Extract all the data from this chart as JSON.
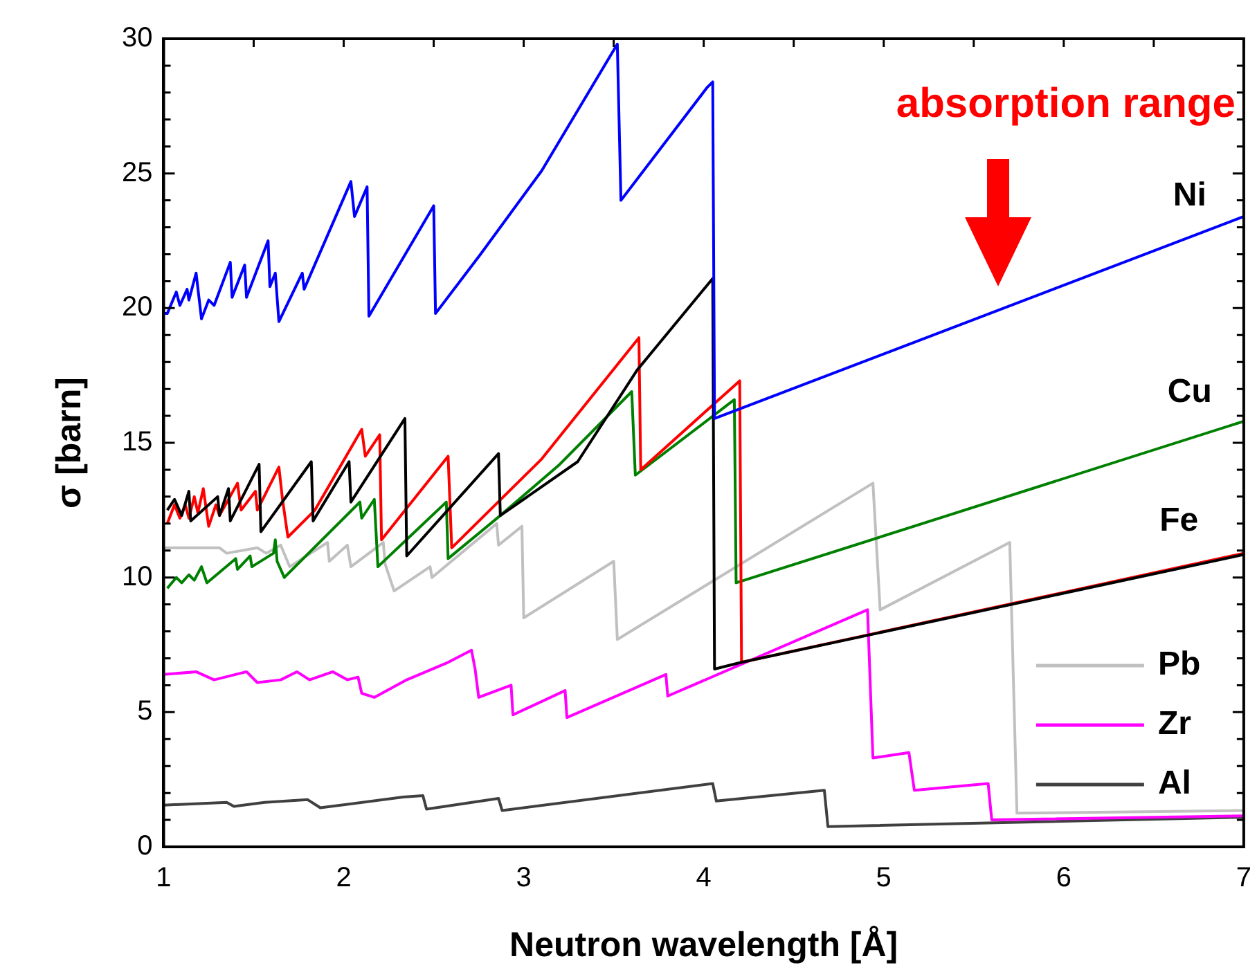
{
  "chart_data": {
    "type": "line",
    "xlabel": "Neutron wavelength [Å]",
    "ylabel": "σ [barn]",
    "xlim": [
      1,
      7
    ],
    "xticks": [
      1,
      2,
      3,
      4,
      5,
      6,
      7
    ],
    "ylim": [
      0,
      30
    ],
    "yticks": [
      0,
      5,
      10,
      15,
      20,
      25,
      30
    ],
    "grid": false,
    "legend": "bottom right",
    "marker": "none",
    "line_style": "solid",
    "annotations": [
      "absorption range",
      "Ni",
      "Cu",
      "Fe"
    ],
    "series": [
      {
        "color": "#0000ff",
        "x": [
          1,
          1.02,
          1.07,
          1.09,
          1.13,
          1.14,
          1.18,
          1.21,
          1.25,
          1.28,
          1.37,
          1.38,
          1.45,
          1.46,
          1.58,
          1.59,
          1.62,
          1.64,
          1.77,
          1.78,
          2.04,
          2.06,
          2.13,
          2.14,
          2.5,
          2.51,
          2.76,
          3.1,
          3.52,
          3.54,
          4.02,
          4.05,
          4.06,
          7
        ],
        "values": [
          19.8,
          19.8,
          20.6,
          20.1,
          20.7,
          20.3,
          21.3,
          19.6,
          20.3,
          20.1,
          21.7,
          20.4,
          21.6,
          20.4,
          22.5,
          20.8,
          21.3,
          19.5,
          21.3,
          20.7,
          24.7,
          23.4,
          24.5,
          19.7,
          23.8,
          19.8,
          22,
          25.1,
          29.8,
          24,
          28.2,
          28.4,
          15.9,
          23.4
        ]
      },
      {
        "color": "#000000",
        "x": [
          1.02,
          1.06,
          1.1,
          1.14,
          1.15,
          1.3,
          1.31,
          1.36,
          1.37,
          1.53,
          1.54,
          1.82,
          1.83,
          2.03,
          2.04,
          2.34,
          2.35,
          2.86,
          2.87,
          3.3,
          3.63,
          4.05,
          4.06,
          4.21,
          7
        ],
        "values": [
          12.5,
          12.9,
          12.3,
          13.2,
          12.1,
          13,
          12.3,
          13.3,
          12.1,
          14.2,
          11.7,
          14.3,
          12.1,
          14.3,
          12.8,
          15.9,
          10.8,
          14.6,
          12.3,
          14.3,
          17.7,
          21.1,
          6.6,
          6.85,
          10.85
        ]
      },
      {
        "color": "#ff0000",
        "x": [
          1.02,
          1.06,
          1.09,
          1.12,
          1.14,
          1.17,
          1.19,
          1.22,
          1.25,
          1.29,
          1.31,
          1.41,
          1.43,
          1.51,
          1.52,
          1.64,
          1.66,
          1.69,
          1.84,
          2.1,
          2.12,
          2.2,
          2.21,
          2.58,
          2.6,
          3.1,
          3.64,
          3.65,
          4.2,
          4.21,
          7
        ],
        "values": [
          12,
          12.7,
          12.2,
          12.7,
          12.2,
          13,
          12.4,
          13.3,
          11.9,
          12.7,
          12.3,
          13.5,
          12.5,
          13.2,
          12.5,
          14.1,
          12.9,
          11.5,
          12.5,
          15.5,
          14.5,
          15.3,
          11.4,
          14.5,
          11.1,
          14.4,
          18.9,
          14,
          17.3,
          6.85,
          10.9
        ]
      },
      {
        "color": "#008000",
        "x": [
          1.02,
          1.07,
          1.1,
          1.14,
          1.17,
          1.21,
          1.24,
          1.4,
          1.41,
          1.48,
          1.49,
          1.61,
          1.62,
          1.63,
          1.67,
          2.09,
          2.1,
          2.17,
          2.19,
          2.57,
          2.58,
          2.87,
          3.2,
          3.6,
          3.62,
          4.17,
          4.18,
          7
        ],
        "values": [
          9.6,
          10,
          9.8,
          10.1,
          9.9,
          10.4,
          9.8,
          10.7,
          10.3,
          10.8,
          10.4,
          10.9,
          11.4,
          10.6,
          10,
          12.8,
          12.2,
          12.9,
          10.4,
          12.8,
          10.7,
          12.3,
          14.2,
          16.9,
          13.8,
          16.6,
          9.8,
          15.8
        ]
      },
      {
        "name": "Pb",
        "color": "#c0c0c0",
        "x": [
          1,
          1.31,
          1.35,
          1.52,
          1.57,
          1.65,
          1.7,
          1.91,
          1.92,
          2.02,
          2.04,
          2.22,
          2.23,
          2.28,
          2.48,
          2.49,
          2.85,
          2.86,
          2.99,
          3,
          3.5,
          3.52,
          4.94,
          4.98,
          5.7,
          5.74,
          7
        ],
        "values": [
          11.1,
          11.1,
          10.9,
          11.1,
          10.9,
          11.2,
          10.4,
          11.3,
          10.6,
          11.2,
          10.4,
          11.3,
          10.5,
          9.5,
          10.4,
          10,
          12,
          11.2,
          11.9,
          8.5,
          10.6,
          7.7,
          13.5,
          8.8,
          11.3,
          1.25,
          1.35
        ]
      },
      {
        "name": "Zr",
        "color": "#ff00ff",
        "x": [
          1,
          1.18,
          1.28,
          1.46,
          1.52,
          1.65,
          1.74,
          1.81,
          1.94,
          2.02,
          2.08,
          2.1,
          2.17,
          2.35,
          2.58,
          2.71,
          2.73,
          2.75,
          2.93,
          2.94,
          3.23,
          3.24,
          3.79,
          3.8,
          4.91,
          4.94,
          5.14,
          5.17,
          5.58,
          5.6,
          7
        ],
        "values": [
          6.4,
          6.5,
          6.2,
          6.5,
          6.1,
          6.2,
          6.5,
          6.2,
          6.5,
          6.2,
          6.3,
          5.7,
          5.55,
          6.2,
          6.85,
          7.3,
          6.6,
          5.55,
          6,
          4.9,
          5.8,
          4.8,
          6.4,
          5.6,
          8.8,
          3.3,
          3.5,
          2.1,
          2.35,
          1,
          1.15
        ]
      },
      {
        "name": "Al",
        "color": "#404040",
        "x": [
          1,
          1.35,
          1.39,
          1.56,
          1.8,
          1.87,
          2.33,
          2.44,
          2.46,
          2.86,
          2.88,
          4.05,
          4.07,
          4.67,
          4.69,
          7
        ],
        "values": [
          1.55,
          1.65,
          1.5,
          1.65,
          1.75,
          1.45,
          1.85,
          1.9,
          1.4,
          1.8,
          1.35,
          2.35,
          1.7,
          2.1,
          0.75,
          1.1
        ]
      }
    ]
  }
}
